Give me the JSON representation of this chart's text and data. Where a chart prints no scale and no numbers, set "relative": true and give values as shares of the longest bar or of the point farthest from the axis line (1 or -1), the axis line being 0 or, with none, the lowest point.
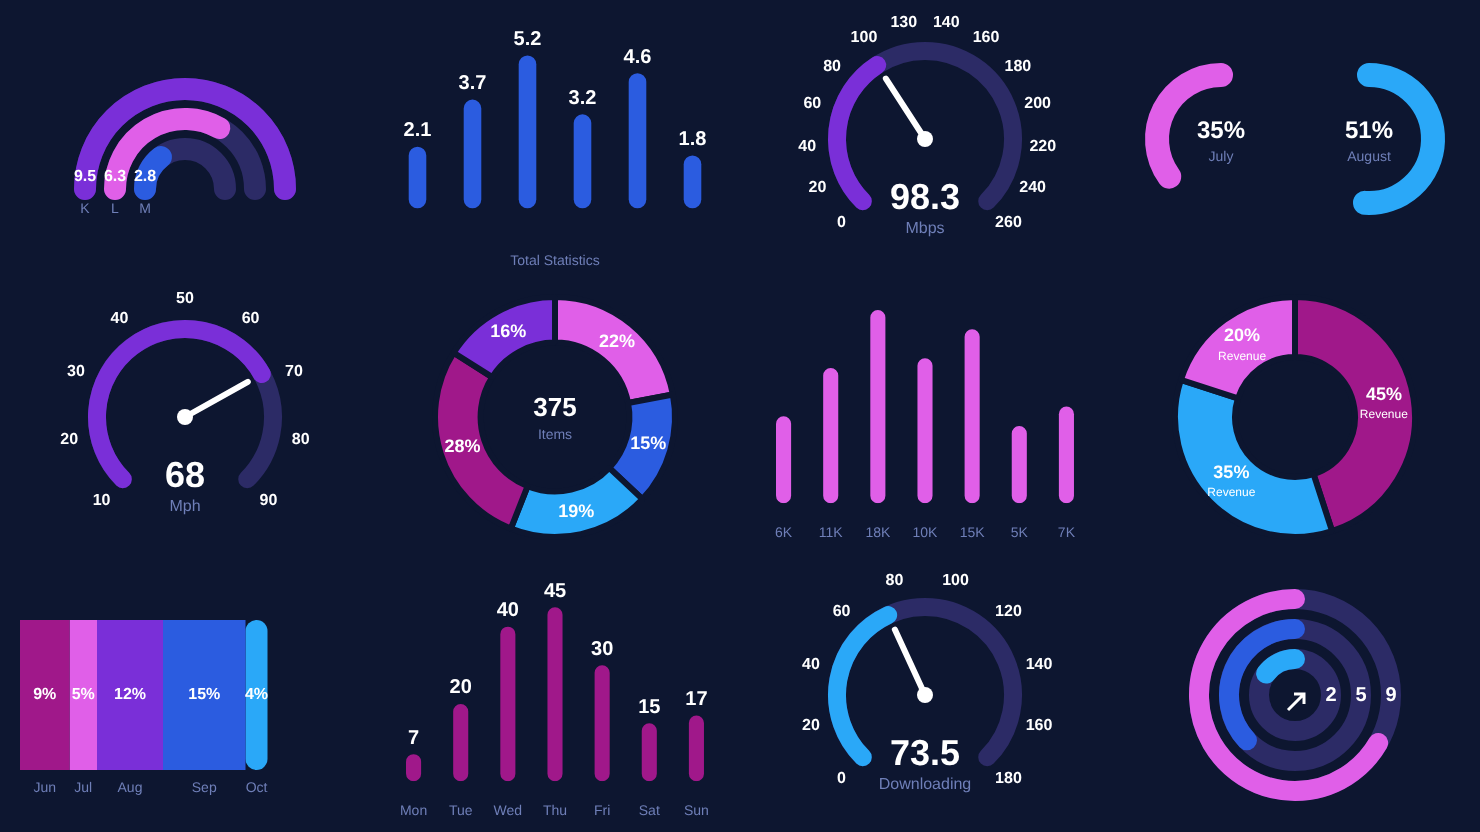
{
  "chart_data": [
    {
      "type": "other",
      "categories": [
        "K",
        "L",
        "M"
      ],
      "values": [
        9.5,
        6.3,
        2.8
      ],
      "colors": [
        "#7a2fd8",
        "#e05fe8",
        "#2b5ce0"
      ],
      "data_labels": true
    },
    {
      "type": "bar",
      "categories": [
        null,
        null,
        null,
        null,
        null,
        null
      ],
      "values": [
        2.1,
        3.7,
        5.2,
        3.2,
        4.6,
        1.8
      ],
      "color": "#2b5ce0",
      "data_labels": true,
      "xlabel": "Total Statistics"
    },
    {
      "type": "other",
      "color": "#7a2fd8",
      "annotations": [
        "0",
        "20",
        "40",
        "60",
        "80",
        "100",
        "130",
        "140",
        "160",
        "180",
        "200",
        "220",
        "240",
        "260",
        "98.3",
        "Mbps"
      ]
    },
    {
      "type": "other",
      "categories": [
        "July",
        "August"
      ],
      "values": [
        35,
        51
      ],
      "colors": [
        "#e05fe8",
        "#2aa8f8"
      ],
      "value_labels": [
        "35%",
        "51%"
      ]
    },
    {
      "type": "other",
      "color": "#7a2fd8",
      "annotations": [
        "10",
        "20",
        "30",
        "40",
        "50",
        "60",
        "70",
        "80",
        "90",
        "68",
        "Mph"
      ]
    },
    {
      "type": "donut",
      "categories": [
        null,
        null,
        null,
        null,
        null
      ],
      "values": [
        22,
        15,
        19,
        28,
        16
      ],
      "colors": [
        "#e05fe8",
        "#2b5ce0",
        "#2aa8f8",
        "#a0188a",
        "#7a2fd8"
      ],
      "value_labels": [
        "22%",
        "15%",
        "19%",
        "28%",
        "16%"
      ],
      "annotations": [
        "375",
        "Items"
      ]
    },
    {
      "type": "bar",
      "categories": [
        "6K",
        "11K",
        "18K",
        "10K",
        "15K",
        "5K",
        "7K"
      ],
      "values": [
        0.45,
        0.7,
        1,
        0.75,
        0.9,
        0.4,
        0.5
      ],
      "color": "#e05fe8",
      "relative": true
    },
    {
      "type": "donut",
      "categories": [
        "Revenue",
        "Revenue",
        "Revenue"
      ],
      "values": [
        45,
        35,
        20
      ],
      "colors": [
        "#a0188a",
        "#2aa8f8",
        "#e05fe8"
      ],
      "value_labels": [
        "45%",
        "35%",
        "20%"
      ]
    },
    {
      "type": "bar",
      "orientation": "horizontal",
      "stacked": true,
      "categories": [
        null
      ],
      "series": [
        {
          "name": "Jun",
          "color": "#a0188a",
          "values": [
            9
          ],
          "value_labels": [
            "9%"
          ]
        },
        {
          "name": "Jul",
          "color": "#e05fe8",
          "values": [
            5
          ],
          "value_labels": [
            "5%"
          ]
        },
        {
          "name": "Aug",
          "color": "#7a2fd8",
          "values": [
            12
          ],
          "value_labels": [
            "12%"
          ]
        },
        {
          "name": "Sep",
          "color": "#2b5ce0",
          "values": [
            15
          ],
          "value_labels": [
            "15%"
          ]
        },
        {
          "name": "Oct",
          "color": "#2aa8f8",
          "values": [
            4
          ],
          "value_labels": [
            "4%"
          ]
        }
      ]
    },
    {
      "type": "bar",
      "categories": [
        "Mon",
        "Tue",
        "Wed",
        "Thu",
        "Fri",
        "Sat",
        "Sun"
      ],
      "values": [
        7,
        20,
        40,
        45,
        30,
        15,
        17
      ],
      "color": "#a0188a",
      "data_labels": true
    },
    {
      "type": "other",
      "color": "#2aa8f8",
      "annotations": [
        "0",
        "20",
        "40",
        "60",
        "80",
        "100",
        "120",
        "140",
        "160",
        "180",
        "73.5",
        "Downloading"
      ]
    },
    {
      "type": "other",
      "values": [
        2,
        5,
        9
      ],
      "colors": [
        "#2aa8f8",
        "#2b5ce0",
        "#e05fe8"
      ],
      "data_labels": true
    }
  ]
}
